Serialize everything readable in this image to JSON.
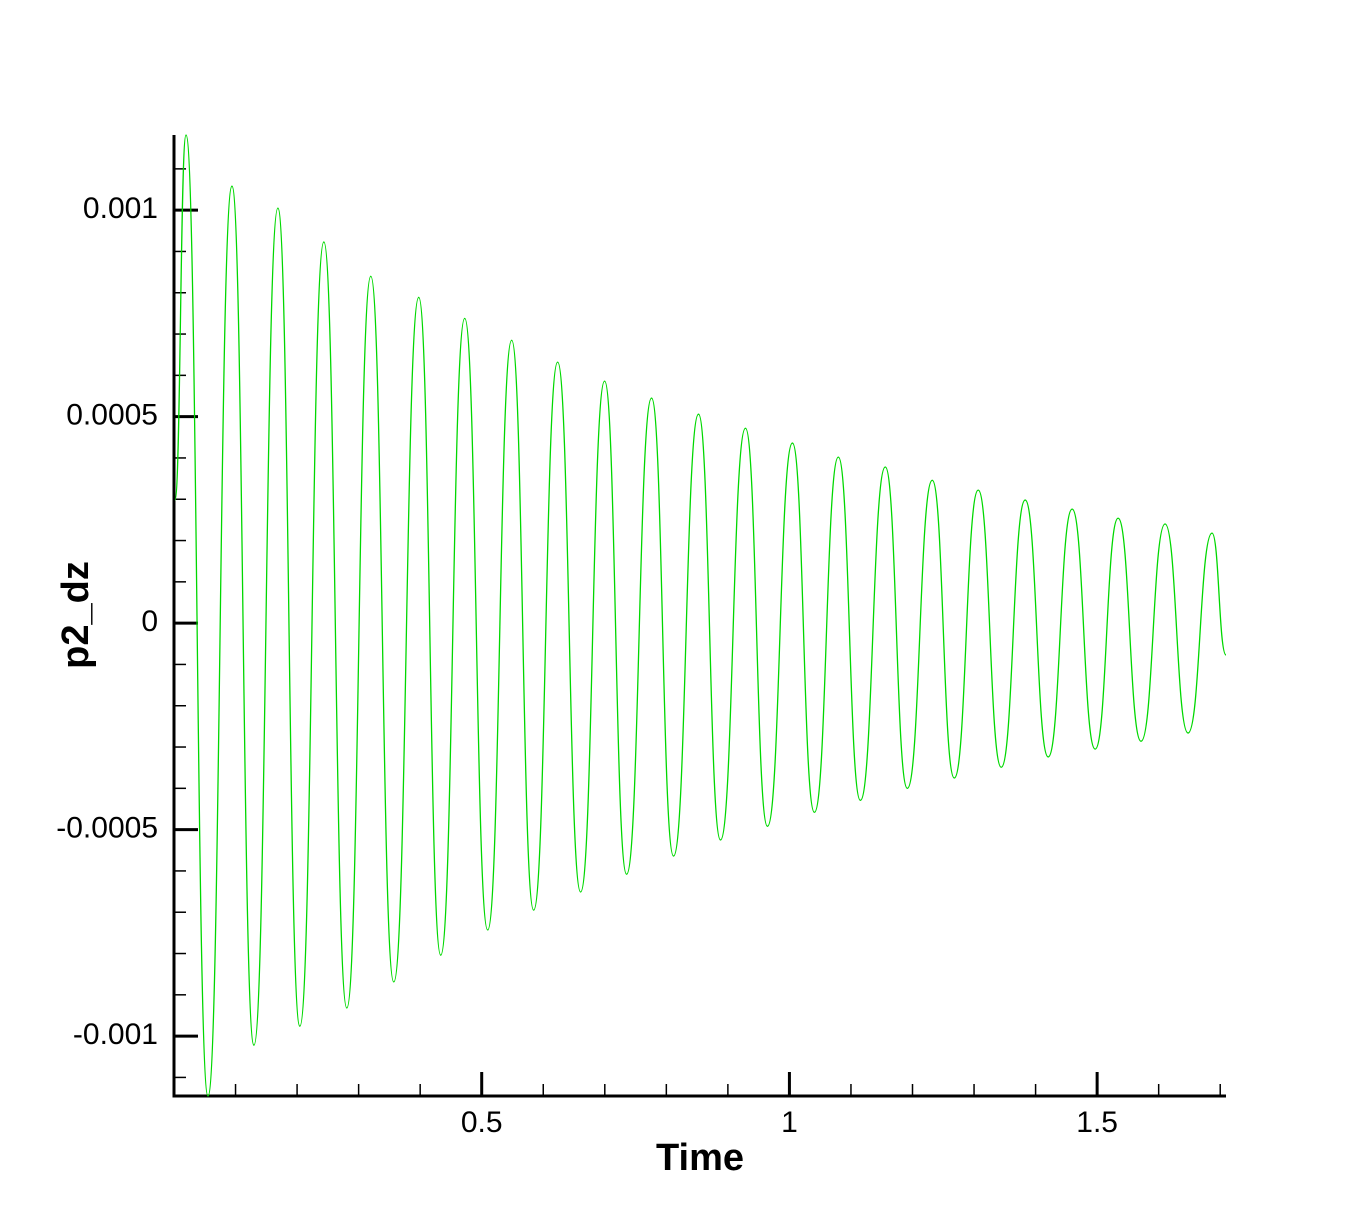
{
  "chart_data": {
    "type": "line",
    "x_label": "Time",
    "y_label": "p2_dz",
    "xlim": [
      0,
      1.7094
    ],
    "ylim": [
      -0.001145,
      0.001182
    ],
    "xticks": [
      0.5,
      1,
      1.5
    ],
    "yticks": [
      0.001,
      0.0005,
      0,
      -0.0005,
      -0.001
    ],
    "minor_ticks": {
      "x": 0.1,
      "y": 0.0001
    },
    "series": [
      {
        "color": "#00d800",
        "x": [
          0.0016,
          0.0195,
          0.0552,
          0.0942,
          0.1299,
          0.1688,
          0.2045,
          0.2435,
          0.2808,
          0.3198,
          0.3571,
          0.3977,
          0.4334,
          0.4724,
          0.5097,
          0.5487,
          0.5844,
          0.6234,
          0.6607,
          0.6997,
          0.7354,
          0.776,
          0.8117,
          0.8523,
          0.888,
          0.9286,
          0.9643,
          1.0049,
          1.0406,
          1.0795,
          1.1153,
          1.1558,
          1.1916,
          1.2321,
          1.2679,
          1.3068,
          1.3442,
          1.3831,
          1.4205,
          1.4594,
          1.4968,
          1.5341,
          1.5714,
          1.6104,
          1.6477,
          1.6867,
          1.7094
        ],
        "values": [
          0.000298,
          0.001182,
          -0.001145,
          0.001058,
          -0.001022,
          0.001005,
          -0.000976,
          0.000923,
          -0.000932,
          0.00084,
          -0.000869,
          0.000789,
          -0.000804,
          0.000738,
          -0.000743,
          0.000685,
          -0.000695,
          0.000632,
          -0.000651,
          0.000586,
          -0.000608,
          0.000545,
          -0.000564,
          0.000506,
          -0.000525,
          0.000472,
          -0.000492,
          0.000436,
          -0.000458,
          0.000402,
          -0.000429,
          0.000378,
          -0.0004,
          0.000346,
          -0.000375,
          0.000322,
          -0.000349,
          0.000298,
          -0.000324,
          0.000276,
          -0.000305,
          0.000254,
          -0.000286,
          0.00024,
          -0.000266,
          0.000218,
          -7.7e-05
        ]
      }
    ]
  }
}
